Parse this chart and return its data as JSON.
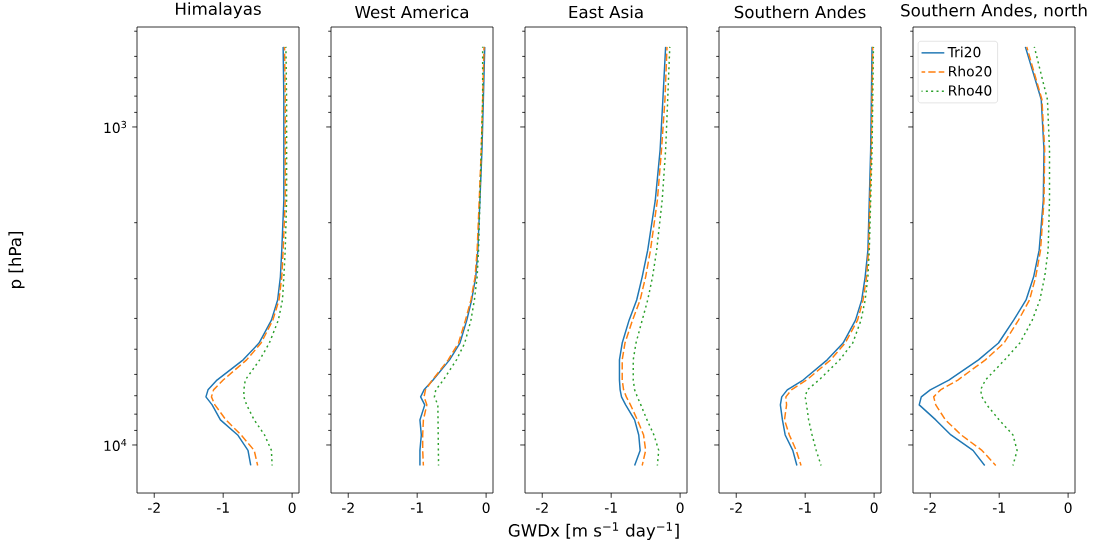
{
  "chart_data": [
    {
      "type": "line",
      "title": "Himalayas",
      "ylabel": "p [hPa]",
      "log": "y",
      "xlim": [
        -2.25,
        0.1
      ],
      "ylim": [
        14160,
        485
      ],
      "xticks": [
        -2,
        -1,
        0
      ],
      "yticks": [
        {
          "value": 500,
          "label": null
        },
        {
          "value": 600,
          "label": null
        },
        {
          "value": 700,
          "label": null
        },
        {
          "value": 800,
          "label": null
        },
        {
          "value": 900,
          "label": null
        },
        {
          "value": 1000,
          "label": "10$^{3}$"
        },
        {
          "value": 2000,
          "label": null
        },
        {
          "value": 3000,
          "label": null
        },
        {
          "value": 4000,
          "label": null
        },
        {
          "value": 5000,
          "label": null
        },
        {
          "value": 6000,
          "label": null
        },
        {
          "value": 7000,
          "label": null
        },
        {
          "value": 8000,
          "label": null
        },
        {
          "value": 9000,
          "label": null
        },
        {
          "value": 10000,
          "label": "10$^{4}$"
        }
      ],
      "series": [
        {
          "color": "#1f77b4",
          "line_style": "solid",
          "x": [
            -0.13,
            -0.12,
            -0.12,
            -0.15,
            -0.17,
            -0.21,
            -0.3,
            -0.48,
            -0.71,
            -1.09,
            -1.22,
            -1.25,
            -1.16,
            -1.04,
            -0.79,
            -0.64,
            -0.6
          ],
          "values": [
            560,
            820,
            1700,
            2440,
            2960,
            3500,
            4050,
            4780,
            5400,
            6250,
            6710,
            7060,
            7480,
            8340,
            9300,
            10400,
            11600
          ]
        },
        {
          "color": "#ff7f0e",
          "line_style": "dashed",
          "x": [
            -0.11,
            -0.1,
            -0.1,
            -0.13,
            -0.15,
            -0.19,
            -0.28,
            -0.45,
            -0.66,
            -1.0,
            -1.14,
            -1.17,
            -1.12,
            -0.96,
            -0.74,
            -0.55,
            -0.5
          ],
          "values": [
            560,
            820,
            1700,
            2440,
            2960,
            3500,
            4050,
            4780,
            5400,
            6250,
            6710,
            7060,
            7480,
            8340,
            9300,
            10400,
            11600
          ]
        },
        {
          "color": "#2ca02c",
          "line_style": "dotted",
          "x": [
            -0.09,
            -0.08,
            -0.08,
            -0.1,
            -0.12,
            -0.14,
            -0.2,
            -0.33,
            -0.47,
            -0.68,
            -0.7,
            -0.7,
            -0.66,
            -0.55,
            -0.4,
            -0.3,
            -0.29
          ],
          "values": [
            560,
            820,
            1700,
            2440,
            2960,
            3500,
            4050,
            4780,
            5400,
            6250,
            6710,
            7060,
            7480,
            8340,
            9300,
            10400,
            11600
          ]
        }
      ]
    },
    {
      "type": "line",
      "title": "West America",
      "log": "y",
      "tick_labels": "x",
      "xlim": [
        -2.25,
        0.1
      ],
      "ylim": [
        14160,
        485
      ],
      "xticks": [
        -2,
        -1,
        0
      ],
      "yticks": [
        {
          "value": 500,
          "label": null
        },
        {
          "value": 600,
          "label": null
        },
        {
          "value": 700,
          "label": null
        },
        {
          "value": 800,
          "label": null
        },
        {
          "value": 900,
          "label": null
        },
        {
          "value": 1000,
          "label": null
        },
        {
          "value": 2000,
          "label": null
        },
        {
          "value": 3000,
          "label": null
        },
        {
          "value": 4000,
          "label": null
        },
        {
          "value": 5000,
          "label": null
        },
        {
          "value": 6000,
          "label": null
        },
        {
          "value": 7000,
          "label": null
        },
        {
          "value": 8000,
          "label": null
        },
        {
          "value": 9000,
          "label": null
        },
        {
          "value": 10000,
          "label": null
        }
      ],
      "series": [
        {
          "color": "#1f77b4",
          "line_style": "solid",
          "x": [
            -0.02,
            -0.04,
            -0.06,
            -0.09,
            -0.12,
            -0.15,
            -0.21,
            -0.28,
            -0.38,
            -0.53,
            -0.77,
            -0.9,
            -0.95,
            -0.89,
            -0.96,
            -0.94,
            -0.96,
            -0.96
          ],
          "values": [
            560,
            820,
            1180,
            1700,
            2440,
            2960,
            3500,
            4050,
            4780,
            5400,
            6250,
            6710,
            7060,
            7480,
            8340,
            9300,
            10400,
            11600
          ]
        },
        {
          "color": "#ff7f0e",
          "line_style": "dashed",
          "x": [
            -0.03,
            -0.05,
            -0.07,
            -0.1,
            -0.13,
            -0.16,
            -0.22,
            -0.3,
            -0.4,
            -0.55,
            -0.78,
            -0.88,
            -0.9,
            -0.86,
            -0.91,
            -0.92,
            -0.92,
            -0.91
          ],
          "values": [
            560,
            820,
            1180,
            1700,
            2440,
            2960,
            3500,
            4050,
            4780,
            5400,
            6250,
            6710,
            7060,
            7480,
            8340,
            9300,
            10400,
            11600
          ]
        },
        {
          "color": "#2ca02c",
          "line_style": "dotted",
          "x": [
            -0.05,
            -0.05,
            -0.07,
            -0.09,
            -0.11,
            -0.13,
            -0.17,
            -0.22,
            -0.31,
            -0.43,
            -0.62,
            -0.73,
            -0.75,
            -0.7,
            -0.69
          ],
          "values": [
            560,
            820,
            1180,
            1700,
            2440,
            2960,
            3500,
            4050,
            4780,
            5400,
            6250,
            6710,
            7060,
            7480,
            11600
          ]
        }
      ]
    },
    {
      "type": "line",
      "title": "East Asia",
      "xlabel": "GWDx [m s$^{−1}$ day$^{−1}$]",
      "log": "y",
      "tick_labels": "x",
      "xlim": [
        -2.25,
        0.1
      ],
      "ylim": [
        14160,
        485
      ],
      "xticks": [
        -2,
        -1,
        0
      ],
      "yticks": [
        {
          "value": 500,
          "label": null
        },
        {
          "value": 600,
          "label": null
        },
        {
          "value": 700,
          "label": null
        },
        {
          "value": 800,
          "label": null
        },
        {
          "value": 900,
          "label": null
        },
        {
          "value": 1000,
          "label": null
        },
        {
          "value": 2000,
          "label": null
        },
        {
          "value": 3000,
          "label": null
        },
        {
          "value": 4000,
          "label": null
        },
        {
          "value": 5000,
          "label": null
        },
        {
          "value": 6000,
          "label": null
        },
        {
          "value": 7000,
          "label": null
        },
        {
          "value": 8000,
          "label": null
        },
        {
          "value": 9000,
          "label": null
        },
        {
          "value": 10000,
          "label": null
        }
      ],
      "series": [
        {
          "color": "#1f77b4",
          "line_style": "solid",
          "x": [
            -0.21,
            -0.25,
            -0.29,
            -0.36,
            -0.47,
            -0.55,
            -0.63,
            -0.74,
            -0.84,
            -0.88,
            -0.88,
            -0.87,
            -0.85,
            -0.79,
            -0.66,
            -0.6,
            -0.58,
            -0.66
          ],
          "values": [
            560,
            820,
            1180,
            1700,
            2440,
            2960,
            3500,
            4050,
            4780,
            5400,
            6250,
            6710,
            7060,
            7480,
            8340,
            9300,
            10400,
            11600
          ]
        },
        {
          "color": "#ff7f0e",
          "line_style": "dashed",
          "x": [
            -0.19,
            -0.22,
            -0.27,
            -0.33,
            -0.43,
            -0.5,
            -0.58,
            -0.69,
            -0.8,
            -0.84,
            -0.84,
            -0.82,
            -0.78,
            -0.72,
            -0.62,
            -0.53,
            -0.5,
            -0.55
          ],
          "values": [
            560,
            820,
            1180,
            1700,
            2440,
            2960,
            3500,
            4050,
            4780,
            5400,
            6250,
            6710,
            7060,
            7480,
            8340,
            9300,
            10400,
            11600
          ]
        },
        {
          "color": "#2ca02c",
          "line_style": "dotted",
          "x": [
            -0.15,
            -0.18,
            -0.21,
            -0.26,
            -0.34,
            -0.4,
            -0.47,
            -0.55,
            -0.64,
            -0.68,
            -0.68,
            -0.66,
            -0.62,
            -0.57,
            -0.48,
            -0.38,
            -0.31,
            -0.33
          ],
          "values": [
            560,
            820,
            1180,
            1700,
            2440,
            2960,
            3500,
            4050,
            4780,
            5400,
            6250,
            6710,
            7060,
            7480,
            8340,
            9300,
            10400,
            11600
          ]
        }
      ]
    },
    {
      "type": "line",
      "title": "Southern Andes",
      "log": "y",
      "tick_labels": "x",
      "xlim": [
        -2.25,
        0.1
      ],
      "ylim": [
        14160,
        485
      ],
      "xticks": [
        -2,
        -1,
        0
      ],
      "yticks": [
        {
          "value": 500,
          "label": null
        },
        {
          "value": 600,
          "label": null
        },
        {
          "value": 700,
          "label": null
        },
        {
          "value": 800,
          "label": null
        },
        {
          "value": 900,
          "label": null
        },
        {
          "value": 1000,
          "label": null
        },
        {
          "value": 2000,
          "label": null
        },
        {
          "value": 3000,
          "label": null
        },
        {
          "value": 4000,
          "label": null
        },
        {
          "value": 5000,
          "label": null
        },
        {
          "value": 6000,
          "label": null
        },
        {
          "value": 7000,
          "label": null
        },
        {
          "value": 8000,
          "label": null
        },
        {
          "value": 9000,
          "label": null
        },
        {
          "value": 10000,
          "label": null
        }
      ],
      "series": [
        {
          "color": "#1f77b4",
          "line_style": "solid",
          "x": [
            -0.03,
            -0.04,
            -0.05,
            -0.07,
            -0.09,
            -0.13,
            -0.18,
            -0.27,
            -0.45,
            -0.68,
            -1.03,
            -1.26,
            -1.34,
            -1.36,
            -1.33,
            -1.29,
            -1.18,
            -1.12
          ],
          "values": [
            560,
            820,
            1180,
            1700,
            2440,
            2960,
            3500,
            4050,
            4780,
            5400,
            6250,
            6710,
            7060,
            7480,
            8340,
            9300,
            10400,
            11600
          ]
        },
        {
          "color": "#ff7f0e",
          "line_style": "dashed",
          "x": [
            -0.02,
            -0.03,
            -0.04,
            -0.06,
            -0.08,
            -0.11,
            -0.16,
            -0.24,
            -0.42,
            -0.63,
            -0.98,
            -1.2,
            -1.28,
            -1.27,
            -1.3,
            -1.23,
            -1.13,
            -1.06
          ],
          "values": [
            560,
            820,
            1180,
            1700,
            2440,
            2960,
            3500,
            4050,
            4780,
            5400,
            6250,
            6710,
            7060,
            7480,
            8340,
            9300,
            10400,
            11600
          ]
        },
        {
          "color": "#2ca02c",
          "line_style": "dotted",
          "x": [
            -0.01,
            -0.02,
            -0.03,
            -0.05,
            -0.07,
            -0.09,
            -0.13,
            -0.19,
            -0.31,
            -0.5,
            -0.8,
            -0.97,
            -1.0,
            -0.98,
            -0.95,
            -0.9,
            -0.84,
            -0.77
          ],
          "values": [
            560,
            820,
            1180,
            1700,
            2440,
            2960,
            3500,
            4050,
            4780,
            5400,
            6250,
            6710,
            7060,
            7480,
            8340,
            9300,
            10400,
            11600
          ]
        }
      ]
    },
    {
      "type": "line",
      "title": "Southern Andes, north",
      "log": "y",
      "tick_labels": "x",
      "legend": "top left",
      "xlim": [
        -2.25,
        0.1
      ],
      "ylim": [
        14160,
        485
      ],
      "xticks": [
        -2,
        -1,
        0
      ],
      "yticks": [
        {
          "value": 500,
          "label": null
        },
        {
          "value": 600,
          "label": null
        },
        {
          "value": 700,
          "label": null
        },
        {
          "value": 800,
          "label": null
        },
        {
          "value": 900,
          "label": null
        },
        {
          "value": 1000,
          "label": null
        },
        {
          "value": 2000,
          "label": null
        },
        {
          "value": 3000,
          "label": null
        },
        {
          "value": 4000,
          "label": null
        },
        {
          "value": 5000,
          "label": null
        },
        {
          "value": 6000,
          "label": null
        },
        {
          "value": 7000,
          "label": null
        },
        {
          "value": 8000,
          "label": null
        },
        {
          "value": 9000,
          "label": null
        },
        {
          "value": 10000,
          "label": null
        }
      ],
      "series": [
        {
          "name": "Tri20",
          "color": "#1f77b4",
          "line_style": "solid",
          "x": [
            -0.62,
            -0.39,
            -0.35,
            -0.36,
            -0.42,
            -0.5,
            -0.61,
            -0.79,
            -1.01,
            -1.3,
            -1.73,
            -2.0,
            -2.13,
            -2.16,
            -1.92,
            -1.7,
            -1.38,
            -1.21
          ],
          "values": [
            560,
            820,
            1180,
            1700,
            2440,
            2960,
            3500,
            4050,
            4780,
            5400,
            6250,
            6710,
            7060,
            7480,
            8340,
            9300,
            10400,
            11600
          ]
        },
        {
          "name": "Rho20",
          "color": "#ff7f0e",
          "line_style": "dashed",
          "x": [
            -0.6,
            -0.38,
            -0.34,
            -0.35,
            -0.4,
            -0.47,
            -0.56,
            -0.72,
            -0.93,
            -1.2,
            -1.6,
            -1.85,
            -1.95,
            -1.92,
            -1.78,
            -1.55,
            -1.25,
            -1.05
          ],
          "values": [
            560,
            820,
            1180,
            1700,
            2440,
            2960,
            3500,
            4050,
            4780,
            5400,
            6250,
            6710,
            7060,
            7480,
            8340,
            9300,
            10400,
            11600
          ]
        },
        {
          "name": "Rho40",
          "color": "#2ca02c",
          "line_style": "dotted",
          "x": [
            -0.49,
            -0.3,
            -0.27,
            -0.27,
            -0.29,
            -0.34,
            -0.41,
            -0.52,
            -0.7,
            -0.92,
            -1.2,
            -1.27,
            -1.25,
            -1.18,
            -1.0,
            -0.8,
            -0.74,
            -0.8
          ],
          "values": [
            560,
            820,
            1180,
            1700,
            2440,
            2960,
            3500,
            4050,
            4780,
            5400,
            6250,
            6710,
            7060,
            7480,
            8340,
            9300,
            10400,
            11600
          ]
        }
      ]
    }
  ]
}
